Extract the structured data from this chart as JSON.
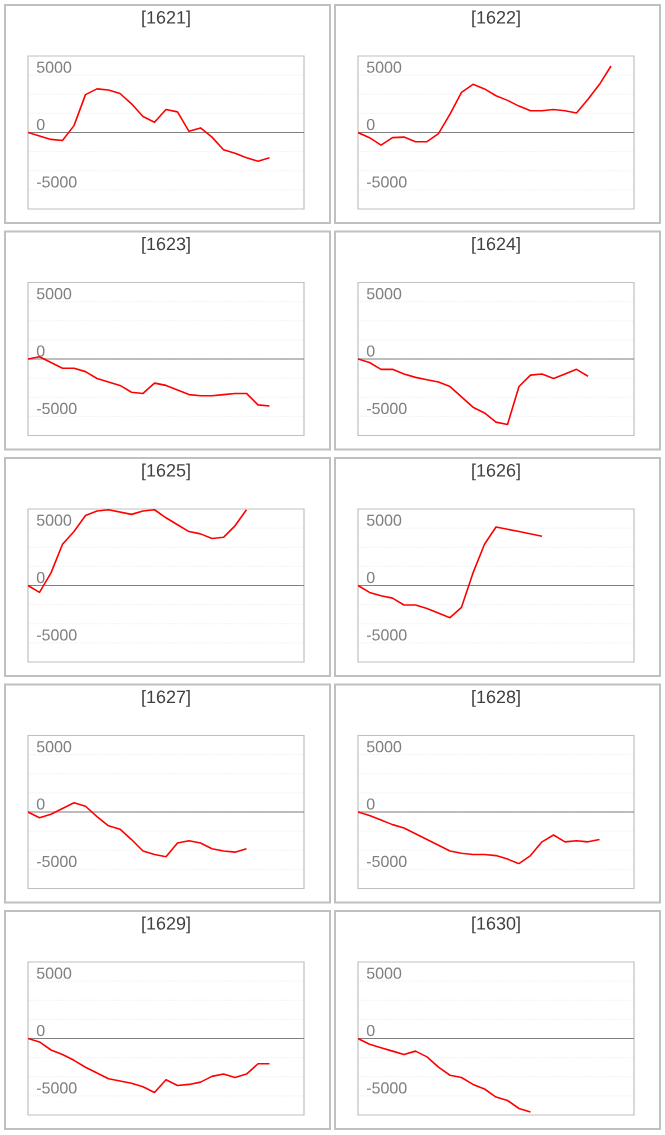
{
  "chart_data": [
    {
      "type": "line",
      "title": "[1621]",
      "categories": [
        null,
        null,
        null,
        null,
        null,
        null,
        null,
        null,
        null,
        null,
        null,
        null,
        null,
        null,
        null,
        null,
        null,
        null,
        null,
        null,
        null,
        null,
        null,
        null,
        null
      ],
      "values": [
        0,
        -300,
        -600,
        -700,
        600,
        3300,
        3800,
        3700,
        3400,
        2500,
        1400,
        900,
        2000,
        1800,
        100,
        400,
        -400,
        -1500,
        -1800,
        -2200,
        -2500,
        -2200,
        null,
        null,
        null
      ],
      "color": "#ff0000",
      "ylim": [
        -6667,
        6667
      ],
      "yticks": [
        -5000,
        {
          "value": -3333,
          "label": null
        },
        {
          "value": -1667,
          "label": null
        },
        0,
        {
          "value": 1667,
          "label": null
        },
        {
          "value": 3333,
          "label": null
        },
        5000
      ],
      "grid": "y",
      "tick_labels": "y",
      "ref_lines": [
        {
          "axis": "y",
          "value": 0,
          "color": "#808080"
        }
      ]
    },
    {
      "type": "line",
      "title": "[1622]",
      "categories": [
        null,
        null,
        null,
        null,
        null,
        null,
        null,
        null,
        null,
        null,
        null,
        null,
        null,
        null,
        null,
        null,
        null,
        null,
        null,
        null,
        null,
        null,
        null,
        null,
        null
      ],
      "values": [
        0,
        -450,
        -1100,
        -450,
        -400,
        -800,
        -800,
        -100,
        1600,
        3500,
        4200,
        3800,
        3200,
        2800,
        2300,
        1900,
        1900,
        2000,
        1900,
        1700,
        2900,
        4200,
        5800,
        null,
        null
      ],
      "color": "#ff0000",
      "ylim": [
        -6667,
        6667
      ],
      "yticks": [
        -5000,
        {
          "value": -3333,
          "label": null
        },
        {
          "value": -1667,
          "label": null
        },
        0,
        {
          "value": 1667,
          "label": null
        },
        {
          "value": 3333,
          "label": null
        },
        5000
      ],
      "grid": "y",
      "tick_labels": "y",
      "ref_lines": [
        {
          "axis": "y",
          "value": 0,
          "color": "#808080"
        }
      ]
    },
    {
      "type": "line",
      "title": "[1623]",
      "categories": [
        null,
        null,
        null,
        null,
        null,
        null,
        null,
        null,
        null,
        null,
        null,
        null,
        null,
        null,
        null,
        null,
        null,
        null,
        null,
        null,
        null,
        null,
        null,
        null,
        null
      ],
      "values": [
        0,
        200,
        -300,
        -800,
        -800,
        -1100,
        -1700,
        -2000,
        -2300,
        -2900,
        -3000,
        -2100,
        -2300,
        -2700,
        -3100,
        -3200,
        -3200,
        -3100,
        -3000,
        -3000,
        -4000,
        -4100,
        null,
        null,
        null
      ],
      "color": "#ff0000",
      "ylim": [
        -6667,
        6667
      ],
      "yticks": [
        -5000,
        {
          "value": -3333,
          "label": null
        },
        {
          "value": -1667,
          "label": null
        },
        0,
        {
          "value": 1667,
          "label": null
        },
        {
          "value": 3333,
          "label": null
        },
        5000
      ],
      "grid": "y",
      "tick_labels": "y",
      "ref_lines": [
        {
          "axis": "y",
          "value": 0,
          "color": "#808080"
        }
      ]
    },
    {
      "type": "line",
      "title": "[1624]",
      "categories": [
        null,
        null,
        null,
        null,
        null,
        null,
        null,
        null,
        null,
        null,
        null,
        null,
        null,
        null,
        null,
        null,
        null,
        null,
        null,
        null,
        null,
        null,
        null,
        null,
        null
      ],
      "values": [
        0,
        -300,
        -900,
        -900,
        -1300,
        -1600,
        -1800,
        -2000,
        -2400,
        -3300,
        -4200,
        -4700,
        -5500,
        -5700,
        -2400,
        -1400,
        -1300,
        -1700,
        -1300,
        -900,
        -1500,
        null,
        null,
        null,
        null
      ],
      "color": "#ff0000",
      "ylim": [
        -6667,
        6667
      ],
      "yticks": [
        -5000,
        {
          "value": -3333,
          "label": null
        },
        {
          "value": -1667,
          "label": null
        },
        0,
        {
          "value": 1667,
          "label": null
        },
        {
          "value": 3333,
          "label": null
        },
        5000
      ],
      "grid": "y",
      "tick_labels": "y",
      "ref_lines": [
        {
          "axis": "y",
          "value": 0,
          "color": "#808080"
        }
      ]
    },
    {
      "type": "line",
      "title": "[1625]",
      "categories": [
        null,
        null,
        null,
        null,
        null,
        null,
        null,
        null,
        null,
        null,
        null,
        null,
        null,
        null,
        null,
        null,
        null,
        null,
        null,
        null,
        null,
        null,
        null,
        null,
        null
      ],
      "values": [
        0,
        -600,
        1100,
        3600,
        4700,
        6100,
        6500,
        6600,
        6400,
        6200,
        6500,
        6600,
        5900,
        5300,
        4700,
        4500,
        4100,
        4200,
        5200,
        6600,
        null,
        null,
        null,
        null,
        null
      ],
      "color": "#ff0000",
      "ylim": [
        -6667,
        6667
      ],
      "yticks": [
        -5000,
        {
          "value": -3333,
          "label": null
        },
        {
          "value": -1667,
          "label": null
        },
        0,
        {
          "value": 1667,
          "label": null
        },
        {
          "value": 3333,
          "label": null
        },
        5000
      ],
      "grid": "y",
      "tick_labels": "y",
      "ref_lines": [
        {
          "axis": "y",
          "value": 0,
          "color": "#808080"
        }
      ]
    },
    {
      "type": "line",
      "title": "[1626]",
      "categories": [
        null,
        null,
        null,
        null,
        null,
        null,
        null,
        null,
        null,
        null,
        null,
        null,
        null,
        null,
        null,
        null,
        null,
        null,
        null,
        null,
        null,
        null,
        null,
        null,
        null
      ],
      "values": [
        0,
        -600,
        -900,
        -1100,
        -1700,
        -1700,
        -2000,
        -2400,
        -2800,
        -1900,
        1100,
        3600,
        5100,
        4900,
        4700,
        4500,
        4300,
        null,
        null,
        null,
        null,
        null,
        null,
        null,
        null
      ],
      "color": "#ff0000",
      "ylim": [
        -6667,
        6667
      ],
      "yticks": [
        -5000,
        {
          "value": -3333,
          "label": null
        },
        {
          "value": -1667,
          "label": null
        },
        0,
        {
          "value": 1667,
          "label": null
        },
        {
          "value": 3333,
          "label": null
        },
        5000
      ],
      "grid": "y",
      "tick_labels": "y",
      "ref_lines": [
        {
          "axis": "y",
          "value": 0,
          "color": "#808080"
        }
      ]
    },
    {
      "type": "line",
      "title": "[1627]",
      "categories": [
        null,
        null,
        null,
        null,
        null,
        null,
        null,
        null,
        null,
        null,
        null,
        null,
        null,
        null,
        null,
        null,
        null,
        null,
        null,
        null,
        null,
        null,
        null,
        null,
        null
      ],
      "values": [
        0,
        -500,
        -200,
        300,
        800,
        500,
        -400,
        -1200,
        -1500,
        -2400,
        -3400,
        -3700,
        -3900,
        -2700,
        -2500,
        -2700,
        -3200,
        -3400,
        -3500,
        -3200,
        null,
        null,
        null,
        null,
        null
      ],
      "color": "#ff0000",
      "ylim": [
        -6667,
        6667
      ],
      "yticks": [
        -5000,
        {
          "value": -3333,
          "label": null
        },
        {
          "value": -1667,
          "label": null
        },
        0,
        {
          "value": 1667,
          "label": null
        },
        {
          "value": 3333,
          "label": null
        },
        5000
      ],
      "grid": "y",
      "tick_labels": "y",
      "ref_lines": [
        {
          "axis": "y",
          "value": 0,
          "color": "#808080"
        }
      ]
    },
    {
      "type": "line",
      "title": "[1628]",
      "categories": [
        null,
        null,
        null,
        null,
        null,
        null,
        null,
        null,
        null,
        null,
        null,
        null,
        null,
        null,
        null,
        null,
        null,
        null,
        null,
        null,
        null,
        null,
        null,
        null,
        null
      ],
      "values": [
        0,
        -300,
        -700,
        -1100,
        -1400,
        -1900,
        -2400,
        -2900,
        -3400,
        -3600,
        -3700,
        -3700,
        -3800,
        -4100,
        -4500,
        -3800,
        -2600,
        -2000,
        -2600,
        -2500,
        -2600,
        -2400,
        null,
        null,
        null
      ],
      "color": "#ff0000",
      "ylim": [
        -6667,
        6667
      ],
      "yticks": [
        -5000,
        {
          "value": -3333,
          "label": null
        },
        {
          "value": -1667,
          "label": null
        },
        0,
        {
          "value": 1667,
          "label": null
        },
        {
          "value": 3333,
          "label": null
        },
        5000
      ],
      "grid": "y",
      "tick_labels": "y",
      "ref_lines": [
        {
          "axis": "y",
          "value": 0,
          "color": "#808080"
        }
      ]
    },
    {
      "type": "line",
      "title": "[1629]",
      "categories": [
        null,
        null,
        null,
        null,
        null,
        null,
        null,
        null,
        null,
        null,
        null,
        null,
        null,
        null,
        null,
        null,
        null,
        null,
        null,
        null,
        null,
        null,
        null,
        null,
        null
      ],
      "values": [
        0,
        -300,
        -1000,
        -1400,
        -1900,
        -2500,
        -3000,
        -3500,
        -3700,
        -3900,
        -4200,
        -4700,
        -3600,
        -4100,
        -4000,
        -3800,
        -3300,
        -3100,
        -3400,
        -3100,
        -2200,
        -2200,
        null,
        null,
        null
      ],
      "color": "#ff0000",
      "ylim": [
        -6667,
        6667
      ],
      "yticks": [
        -5000,
        {
          "value": -3333,
          "label": null
        },
        {
          "value": -1667,
          "label": null
        },
        0,
        {
          "value": 1667,
          "label": null
        },
        {
          "value": 3333,
          "label": null
        },
        5000
      ],
      "grid": "y",
      "tick_labels": "y",
      "ref_lines": [
        {
          "axis": "y",
          "value": 0,
          "color": "#808080"
        }
      ]
    },
    {
      "type": "line",
      "title": "[1630]",
      "categories": [
        null,
        null,
        null,
        null,
        null,
        null,
        null,
        null,
        null,
        null,
        null,
        null,
        null,
        null,
        null,
        null,
        null,
        null,
        null,
        null,
        null,
        null,
        null,
        null,
        null
      ],
      "values": [
        0,
        -500,
        -800,
        -1100,
        -1400,
        -1100,
        -1600,
        -2500,
        -3200,
        -3400,
        -4000,
        -4400,
        -5100,
        -5400,
        -6100,
        -6400,
        null,
        null,
        null,
        null,
        null,
        null,
        null,
        null,
        null
      ],
      "color": "#ff0000",
      "ylim": [
        -6667,
        6667
      ],
      "yticks": [
        -5000,
        {
          "value": -3333,
          "label": null
        },
        {
          "value": -1667,
          "label": null
        },
        0,
        {
          "value": 1667,
          "label": null
        },
        {
          "value": 3333,
          "label": null
        },
        5000
      ],
      "grid": "y",
      "tick_labels": "y",
      "ref_lines": [
        {
          "axis": "y",
          "value": 0,
          "color": "#808080"
        }
      ]
    }
  ]
}
